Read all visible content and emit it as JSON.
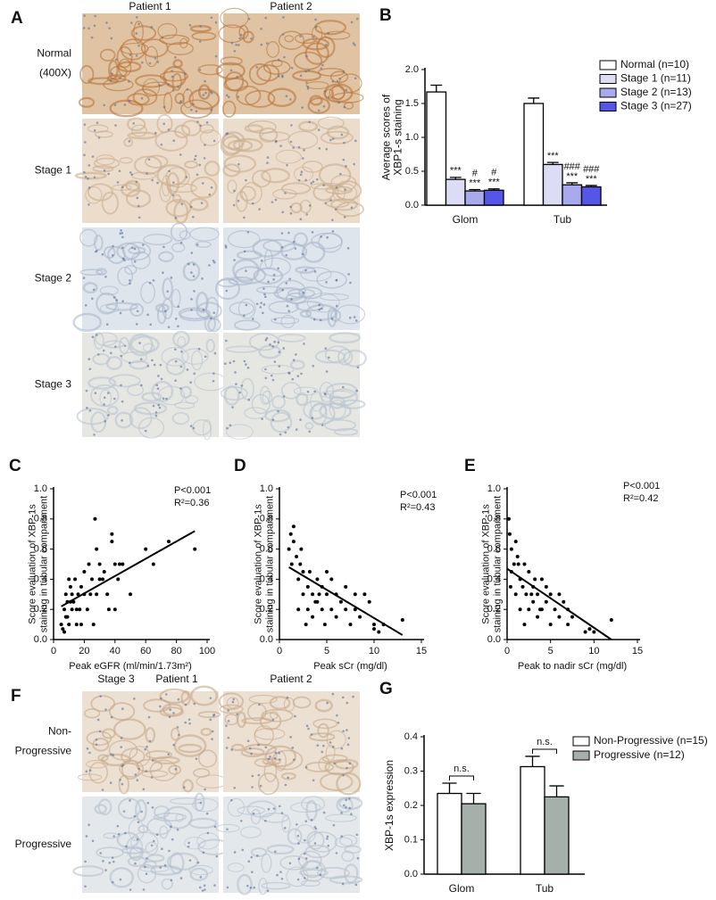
{
  "micrographs_A": {
    "panel_label": "A",
    "columns": [
      "Patient 1",
      "Patient 2"
    ],
    "rows": [
      [
        "Normal",
        "(400X)"
      ],
      [
        "Stage 1"
      ],
      [
        "Stage 2"
      ],
      [
        "Stage 3"
      ]
    ]
  },
  "micrographs_F": {
    "panel_label": "F",
    "stage": "Stage 3",
    "columns": [
      "Patient 1",
      "Patient 2"
    ],
    "rows": [
      [
        "Non-",
        "Progressive"
      ],
      [
        "Progressive"
      ]
    ]
  },
  "chart_data": [
    {
      "type": "bar",
      "panel_label": "B",
      "ylabel": [
        "Average scores of",
        "XBP1-s staining"
      ],
      "categories": [
        "Glom",
        "Tub"
      ],
      "ylim": [
        0,
        2
      ],
      "yticks": [
        {
          "value": 0,
          "label": "0.0"
        },
        0.5,
        {
          "value": 1,
          "label": "1.0"
        },
        1.5,
        {
          "value": 2,
          "label": "2.0"
        }
      ],
      "series": [
        {
          "name": "Normal (n=10)",
          "color": "#ffffff",
          "values": [
            1.67,
            1.5
          ],
          "errors": [
            0.1,
            0.08
          ]
        },
        {
          "name": "Stage 1 (n=11)",
          "color": "#dcdcf5",
          "values": [
            0.38,
            0.6
          ],
          "errors": [
            0.03,
            0.03
          ],
          "annotations": [
            [
              "***"
            ],
            [
              "***"
            ]
          ]
        },
        {
          "name": "Stage 2 (n=13)",
          "color": "#a9a9ee",
          "values": [
            0.21,
            0.3
          ],
          "errors": [
            0.02,
            0.03
          ],
          "annotations": [
            [
              "#",
              "***"
            ],
            [
              "###",
              "***"
            ]
          ]
        },
        {
          "name": "Stage 3 (n=27)",
          "color": "#5555e8",
          "values": [
            0.22,
            0.27
          ],
          "errors": [
            0.02,
            0.02
          ],
          "annotations": [
            [
              "#",
              "***"
            ],
            [
              "###",
              "***"
            ]
          ]
        }
      ]
    },
    {
      "type": "scatter",
      "panel_label": "C",
      "xlabel": "Peak eGFR (ml/min/1.73m²)",
      "ylabel": [
        "Score evaluation of XBP-1s",
        "staining in tubular compartment"
      ],
      "annotations": [
        "P<0.001",
        "R²=0.36"
      ],
      "xlim": [
        0,
        100
      ],
      "xticks": [
        0,
        20,
        40,
        60,
        80,
        100
      ],
      "ylim": [
        0,
        1
      ],
      "yticks": [
        {
          "value": 0,
          "label": "0.0"
        },
        0.2,
        0.4,
        0.6,
        0.8,
        {
          "value": 1,
          "label": "1.0"
        }
      ],
      "color": "#000000",
      "x": [
        5,
        6,
        7,
        8,
        8,
        9,
        10,
        10,
        11,
        12,
        12,
        13,
        14,
        15,
        15,
        16,
        17,
        18,
        18,
        20,
        20,
        22,
        23,
        25,
        26,
        27,
        28,
        28,
        30,
        30,
        32,
        35,
        38,
        38,
        40,
        40,
        42,
        43,
        45,
        50,
        60,
        65,
        75,
        92,
        7,
        9,
        11,
        24,
        33,
        36
      ],
      "y": [
        0.1,
        0.07,
        0.2,
        0.15,
        0.3,
        0.25,
        0.4,
        0.1,
        0.35,
        0.2,
        0.3,
        0.25,
        0.4,
        0.2,
        0.1,
        0.3,
        0.2,
        0.1,
        0.35,
        0.3,
        0.45,
        0.2,
        0.5,
        0.4,
        0.1,
        0.8,
        0.6,
        0.3,
        0.4,
        0.5,
        0.4,
        0.3,
        0.7,
        0.65,
        0.5,
        0.2,
        0.4,
        0.5,
        0.5,
        0.3,
        0.6,
        0.5,
        0.65,
        0.6,
        0.05,
        0.15,
        0.25,
        0.3,
        0.45,
        0.2
      ],
      "fit": {
        "x": [
          5,
          92
        ],
        "y": [
          0.22,
          0.72
        ]
      }
    },
    {
      "type": "scatter",
      "panel_label": "D",
      "xlabel": "Peak sCr (mg/dl)",
      "ylabel": [
        "Score evaluation of XBP-1s",
        "staining in tubular compartment"
      ],
      "annotations": [
        "P<0.001",
        "R²=0.43"
      ],
      "xlim": [
        0,
        15
      ],
      "xticks": [
        0,
        5,
        10,
        15
      ],
      "ylim": [
        0,
        1
      ],
      "yticks": [
        {
          "value": 0,
          "label": "0.0"
        },
        0.2,
        0.4,
        0.6,
        0.8,
        {
          "value": 1,
          "label": "1.0"
        }
      ],
      "color": "#000000",
      "x": [
        1,
        1.2,
        1.5,
        1.5,
        1.8,
        2,
        2,
        2.2,
        2.5,
        2.5,
        2.8,
        3,
        3,
        3.2,
        3.5,
        3.5,
        4,
        4,
        4.2,
        4.5,
        4.5,
        5,
        5,
        5.5,
        5.5,
        6,
        6,
        6.5,
        7,
        7,
        7.5,
        8,
        8,
        8.5,
        9,
        9.5,
        10,
        10,
        10.5,
        11,
        13,
        1.3,
        2.3,
        3.8,
        4.8
      ],
      "y": [
        0.6,
        0.7,
        0.65,
        0.75,
        0.55,
        0.4,
        0.2,
        0.5,
        0.3,
        0.45,
        0.1,
        0.35,
        0.2,
        0.45,
        0.3,
        0.15,
        0.4,
        0.25,
        0.3,
        0.35,
        0.2,
        0.45,
        0.3,
        0.2,
        0.4,
        0.3,
        0.15,
        0.25,
        0.35,
        0.2,
        0.1,
        0.3,
        0.2,
        0.15,
        0.3,
        0.25,
        0.1,
        0.07,
        0.05,
        0.1,
        0.13,
        0.5,
        0.6,
        0.25,
        0.1
      ],
      "fit": {
        "x": [
          1,
          13
        ],
        "y": [
          0.48,
          0.03
        ]
      }
    },
    {
      "type": "scatter",
      "panel_label": "E",
      "xlabel": "Peak to nadir sCr (mg/dl)",
      "ylabel": [
        "Score evaluation of XBP-1s",
        "staining in tubular compartment"
      ],
      "annotations": [
        "P<0.001",
        "R²=0.42"
      ],
      "xlim": [
        0,
        15
      ],
      "xticks": [
        0,
        5,
        10,
        15
      ],
      "ylim": [
        0,
        1
      ],
      "yticks": [
        {
          "value": 0,
          "label": "0.0"
        },
        0.2,
        0.4,
        0.6,
        0.8,
        {
          "value": 1,
          "label": "1.0"
        }
      ],
      "color": "#000000",
      "x": [
        0.2,
        0.3,
        0.5,
        0.5,
        0.8,
        1,
        1,
        1.2,
        1.5,
        1.5,
        1.8,
        2,
        2,
        2.2,
        2.5,
        2.5,
        3,
        3,
        3.2,
        3.5,
        3.5,
        4,
        4,
        4.5,
        4.5,
        5,
        5,
        5.5,
        6,
        6,
        6.5,
        7,
        7,
        7.5,
        9,
        9.5,
        10,
        12,
        0.4,
        1.3,
        2.8,
        3.8
      ],
      "y": [
        0.8,
        0.7,
        0.6,
        0.45,
        0.5,
        0.65,
        0.3,
        0.55,
        0.4,
        0.2,
        0.35,
        0.5,
        0.1,
        0.3,
        0.45,
        0.2,
        0.35,
        0.25,
        0.4,
        0.3,
        0.15,
        0.4,
        0.2,
        0.35,
        0.25,
        0.3,
        0.1,
        0.2,
        0.3,
        0.15,
        0.25,
        0.2,
        0.1,
        0.15,
        0.05,
        0.07,
        0.05,
        0.13,
        0.35,
        0.5,
        0.3,
        0.2
      ],
      "fit": {
        "x": [
          0,
          12
        ],
        "y": [
          0.47,
          0
        ]
      }
    },
    {
      "type": "bar",
      "panel_label": "G",
      "ylabel": [
        "XBP-1s expression"
      ],
      "categories": [
        "Glom",
        "Tub"
      ],
      "significance": [
        "n.s.",
        "n.s."
      ],
      "ylim": [
        0,
        0.4
      ],
      "yticks": [
        {
          "value": 0,
          "label": "0.0"
        },
        0.1,
        0.2,
        0.3,
        0.4
      ],
      "series": [
        {
          "name": "Non-Progressive (n=15)",
          "color": "#ffffff",
          "values": [
            0.235,
            0.313
          ],
          "errors": [
            0.03,
            0.03
          ]
        },
        {
          "name": "Progressive (n=12)",
          "color": "#a6b0ab",
          "values": [
            0.205,
            0.225
          ],
          "errors": [
            0.03,
            0.032
          ]
        }
      ]
    }
  ]
}
